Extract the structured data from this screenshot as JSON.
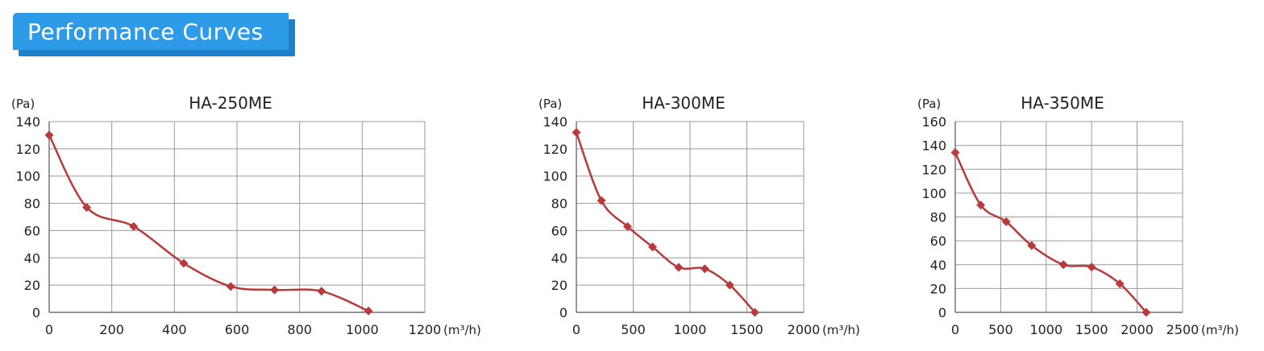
{
  "header": {
    "title": "Performance Curves"
  },
  "colors": {
    "curve": "#b83a3a",
    "grid": "#9a9a9a",
    "banner": "#2d9be8",
    "banner_shadow": "#1f7fc9"
  },
  "chart_data": [
    {
      "type": "line",
      "title": "HA-250ME",
      "y_unit": "(Pa)",
      "x_unit": "(m³/h)",
      "xlim": [
        0,
        1200
      ],
      "ylim": [
        0,
        140
      ],
      "x_ticks": [
        0,
        200,
        400,
        600,
        800,
        1000,
        1200
      ],
      "y_ticks": [
        0,
        20,
        40,
        60,
        80,
        100,
        120,
        140
      ],
      "grid": true,
      "x": [
        0,
        120,
        270,
        430,
        580,
        720,
        870,
        1020
      ],
      "y": [
        130,
        77,
        63,
        36,
        19,
        16.5,
        15.5,
        1
      ]
    },
    {
      "type": "line",
      "title": "HA-300ME",
      "y_unit": "(Pa)",
      "x_unit": "(m³/h)",
      "xlim": [
        0,
        2000
      ],
      "ylim": [
        0,
        140
      ],
      "x_ticks": [
        0,
        500,
        1000,
        1500,
        2000
      ],
      "y_ticks": [
        0,
        20,
        40,
        60,
        80,
        100,
        120,
        140
      ],
      "grid": true,
      "x": [
        0,
        220,
        450,
        670,
        900,
        1130,
        1350,
        1570
      ],
      "y": [
        132,
        82,
        63,
        48,
        33,
        32,
        20,
        0
      ]
    },
    {
      "type": "line",
      "title": "HA-350ME",
      "y_unit": "(Pa)",
      "x_unit": "(m³/h)",
      "xlim": [
        0,
        2500
      ],
      "ylim": [
        0,
        160
      ],
      "x_ticks": [
        0,
        500,
        1000,
        1500,
        2000,
        2500
      ],
      "y_ticks": [
        0,
        20,
        40,
        60,
        80,
        100,
        120,
        140,
        160
      ],
      "grid": true,
      "x": [
        0,
        280,
        560,
        840,
        1190,
        1500,
        1810,
        2100
      ],
      "y": [
        134,
        90,
        76,
        56,
        40,
        38,
        24,
        0
      ]
    }
  ]
}
